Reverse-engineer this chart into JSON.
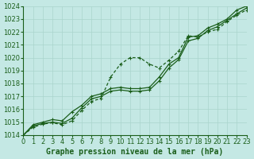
{
  "x": [
    0,
    1,
    2,
    3,
    4,
    5,
    6,
    7,
    8,
    9,
    10,
    11,
    12,
    13,
    14,
    15,
    16,
    17,
    18,
    19,
    20,
    21,
    22,
    23
  ],
  "line1": [
    1014.0,
    1014.8,
    1015.0,
    1015.2,
    1015.1,
    1015.8,
    1016.3,
    1017.0,
    1017.2,
    1017.6,
    1017.7,
    1017.6,
    1017.6,
    1017.7,
    1018.5,
    1019.5,
    1020.0,
    1021.6,
    1021.7,
    1022.3,
    1022.6,
    1023.0,
    1023.7,
    1024.0
  ],
  "line2_upper": [
    1014.0,
    1014.7,
    1014.9,
    1015.0,
    1014.9,
    1015.3,
    1016.1,
    1016.8,
    1017.0,
    1017.4,
    1017.5,
    1017.4,
    1017.4,
    1017.5,
    1018.2,
    1019.2,
    1019.85,
    1021.3,
    1021.5,
    1022.1,
    1022.4,
    1022.9,
    1023.4,
    1023.85
  ],
  "line3_diverge": [
    1014.0,
    1014.6,
    1014.85,
    1014.95,
    1014.8,
    1015.1,
    1015.9,
    1016.6,
    1016.85,
    1018.5,
    1019.5,
    1020.0,
    1020.0,
    1019.5,
    1019.2,
    1019.8,
    1020.5,
    1021.7,
    1021.6,
    1022.0,
    1022.2,
    1022.8,
    1023.3,
    1023.7
  ],
  "line_color": "#1a5e1a",
  "bg_color": "#c4e8e4",
  "grid_color": "#aad4cc",
  "xlabel": "Graphe pression niveau de la mer (hPa)",
  "ylim": [
    1014,
    1024
  ],
  "xlim": [
    0,
    23
  ],
  "yticks": [
    1014,
    1015,
    1016,
    1017,
    1018,
    1019,
    1020,
    1021,
    1022,
    1023,
    1024
  ],
  "xticks": [
    0,
    1,
    2,
    3,
    4,
    5,
    6,
    7,
    8,
    9,
    10,
    11,
    12,
    13,
    14,
    15,
    16,
    17,
    18,
    19,
    20,
    21,
    22,
    23
  ],
  "xlabel_fontsize": 7,
  "tick_fontsize": 6
}
